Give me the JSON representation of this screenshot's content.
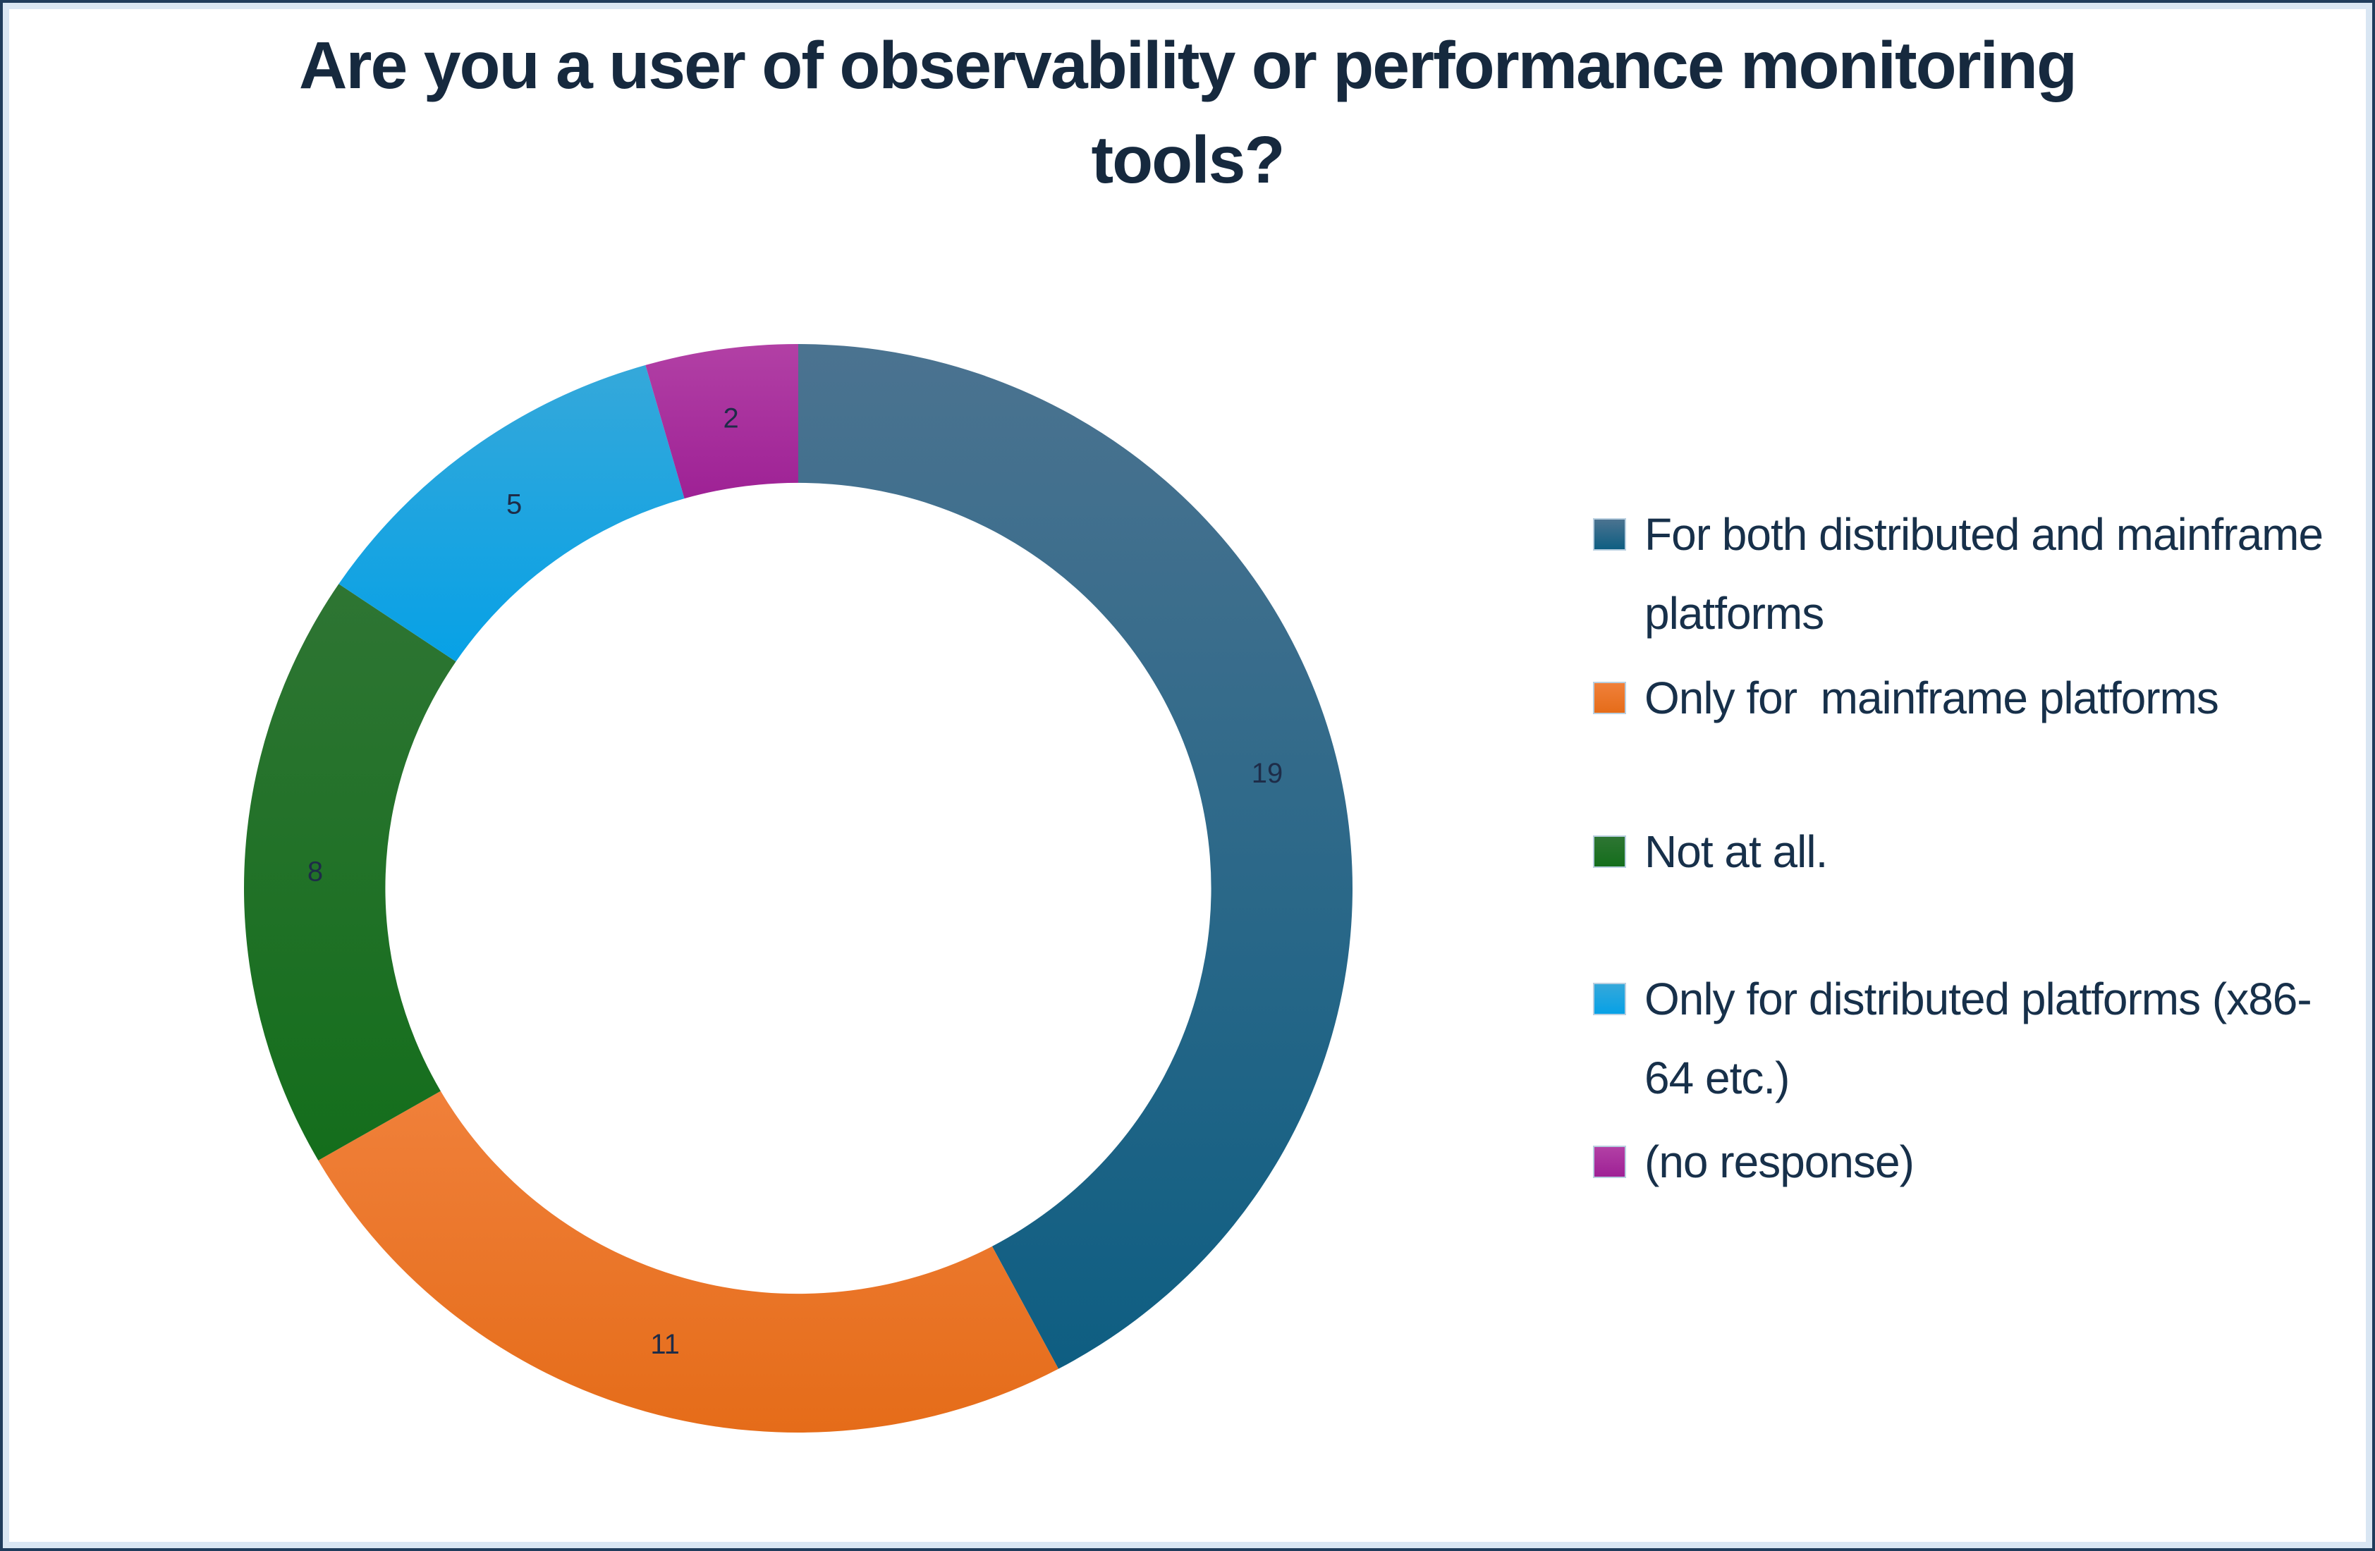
{
  "title": {
    "lines": [
      "Are you a user of observability or performance monitoring",
      "tools?"
    ]
  },
  "chart_data": {
    "type": "donut",
    "title": "Are you a user of observability or performance monitoring tools?",
    "total": 45,
    "start_angle_deg": 0,
    "direction": "clockwise",
    "inner_radius_ratio": 0.745,
    "data_labels": "values",
    "label_color": "#1e2c48",
    "legend_position": "right",
    "series": [
      {
        "label": "For both distributed and mainframe platforms",
        "value": 19,
        "color": "#1d6384",
        "color_light": "#4b7390",
        "color_dark": "#0e5e82"
      },
      {
        "label": "Only for  mainframe platforms",
        "value": 11,
        "color": "#ec7527",
        "color_light": "#f0803a",
        "color_dark": "#e56c19"
      },
      {
        "label": "Not at all.",
        "value": 8,
        "color": "#1d7123",
        "color_light": "#2e7533",
        "color_dark": "#146e1c"
      },
      {
        "label": "Only for distributed platforms (x86-64 etc.)",
        "value": 5,
        "color": "#18a3e0",
        "color_light": "#35a8da",
        "color_dark": "#07a1e6"
      },
      {
        "label": "(no response)",
        "value": 2,
        "color": "#aa2d9d",
        "color_light": "#b240a5",
        "color_dark": "#9e2195"
      }
    ]
  }
}
